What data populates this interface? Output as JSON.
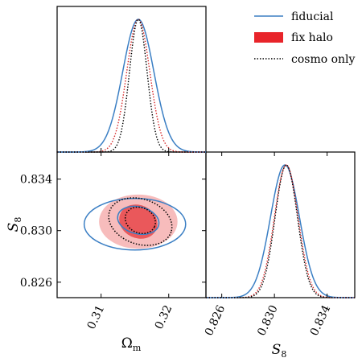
{
  "chart_data": [
    {
      "panel": "omega_m-marginal",
      "type": "line",
      "xlim": [
        0.3035,
        0.3255
      ],
      "x_ticks": [
        0.31,
        0.32
      ],
      "y_ticks": [],
      "series": [
        {
          "name": "fiducial",
          "color": "#3b7fc4",
          "style": "solid",
          "mean": 0.3155,
          "sigma": 0.0023
        },
        {
          "name": "fix halo",
          "color": "#d62728",
          "style": "dotted",
          "mean": 0.3155,
          "sigma": 0.0017
        },
        {
          "name": "cosmo only",
          "color": "#000000",
          "style": "dotted",
          "mean": 0.3155,
          "sigma": 0.0013
        }
      ]
    },
    {
      "panel": "s8-marginal",
      "type": "line",
      "xlim": [
        0.8248,
        0.8361
      ],
      "x_ticks": [
        0.826,
        0.83,
        0.834
      ],
      "x_tick_labels": [
        "0.826",
        "0.830",
        "0.834"
      ],
      "xlabel_symbol": "S",
      "xlabel_subscript": "8",
      "series": [
        {
          "name": "fiducial",
          "color": "#3b7fc4",
          "style": "solid",
          "mean": 0.8308,
          "sigma": 0.0011
        },
        {
          "name": "fix halo",
          "color": "#d62728",
          "style": "dotted",
          "mean": 0.8309,
          "sigma": 0.0009
        },
        {
          "name": "cosmo only",
          "color": "#000000",
          "style": "dotted",
          "mean": 0.8309,
          "sigma": 0.00085
        }
      ]
    },
    {
      "panel": "omega_m-vs-s8",
      "type": "scatter",
      "xlim": [
        0.3035,
        0.3255
      ],
      "ylim": [
        0.8248,
        0.8361
      ],
      "x_ticks": [
        0.31,
        0.32
      ],
      "y_ticks": [
        0.826,
        0.83,
        0.834
      ],
      "x_tick_labels": [
        "0.31",
        "0.32"
      ],
      "y_tick_labels": [
        "0.826",
        "0.830",
        "0.834"
      ],
      "xlabel_symbol": "Ω",
      "xlabel_subscript": "m",
      "ylabel_symbol": "S",
      "ylabel_subscript": "8",
      "contours": [
        {
          "name": "fix halo",
          "level": "2sigma",
          "cx": 0.3155,
          "cy": 0.8307,
          "rx": 0.0058,
          "ry": 0.0021,
          "tilt": 0.0,
          "fill": "#f4a6a6",
          "fill_opacity": 0.75
        },
        {
          "name": "fix halo",
          "level": "1sigma",
          "cx": 0.3155,
          "cy": 0.8307,
          "rx": 0.0029,
          "ry": 0.00128,
          "tilt": -0.9,
          "fill": "#e8464a",
          "fill_opacity": 0.85
        },
        {
          "name": "fiducial",
          "level": "2sigma",
          "cx": 0.315,
          "cy": 0.8305,
          "rx": 0.0075,
          "ry": 0.002,
          "tilt": 0.0,
          "stroke": "#3b7fc4",
          "dash": "none"
        },
        {
          "name": "fiducial",
          "level": "1sigma",
          "cx": 0.3155,
          "cy": 0.8308,
          "rx": 0.0031,
          "ry": 0.00105,
          "tilt": -0.4,
          "stroke": "#3b7fc4",
          "dash": "none"
        },
        {
          "name": "cosmo only",
          "level": "2sigma",
          "cx": 0.3158,
          "cy": 0.8307,
          "rx": 0.0048,
          "ry": 0.00175,
          "tilt": -0.6,
          "stroke": "#000000",
          "dash": "1.5,2"
        },
        {
          "name": "cosmo only",
          "level": "1sigma",
          "cx": 0.3158,
          "cy": 0.8308,
          "rx": 0.0023,
          "ry": 0.00098,
          "tilt": -0.9,
          "stroke": "#000000",
          "dash": "1.5,2"
        }
      ]
    }
  ],
  "legend": {
    "placement": "top-right",
    "entries": [
      {
        "label": "fiducial",
        "kind": "line",
        "color": "#3b7fc4",
        "dash": "none"
      },
      {
        "label": "fix halo",
        "kind": "patch",
        "color": "#e8242a"
      },
      {
        "label": "cosmo only",
        "kind": "line",
        "color": "#000000",
        "dash": "1.5,2"
      }
    ]
  }
}
